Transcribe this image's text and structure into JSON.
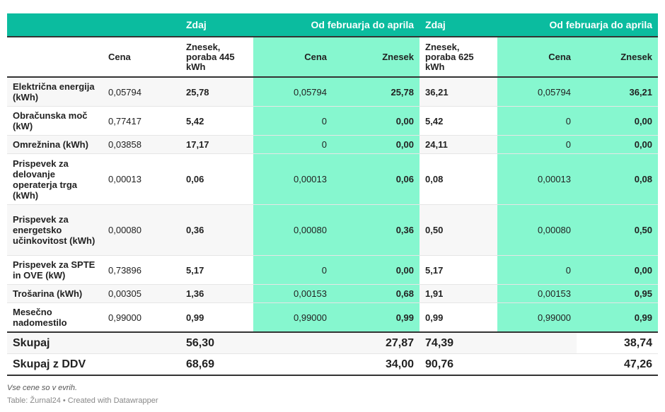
{
  "header": {
    "groups": [
      "",
      "",
      "Zdaj",
      "Od februarja do aprila",
      "Zdaj",
      "Od februarja do aprila"
    ],
    "columns": [
      "",
      "Cena",
      "Znesek, poraba 445 kWh",
      "Cena",
      "Znesek",
      "Znesek, poraba 625 kWh",
      "Cena",
      "Znesek"
    ]
  },
  "rows": [
    [
      "Električna energija (kWh)",
      "0,05794",
      "25,78",
      "0,05794",
      "25,78",
      "36,21",
      "0,05794",
      "36,21"
    ],
    [
      "Obračunska moč (kW)",
      "0,77417",
      "5,42",
      "0",
      "0,00",
      "5,42",
      "0",
      "0,00"
    ],
    [
      "Omrežnina (kWh)",
      "0,03858",
      "17,17",
      "0",
      "0,00",
      "24,11",
      "0",
      "0,00"
    ],
    [
      "Prispevek za delovanje operaterja trga (kWh)",
      "0,00013",
      "0,06",
      "0,00013",
      "0,06",
      "0,08",
      "0,00013",
      "0,08"
    ],
    [
      "Prispevek za energetsko učinkovitost (kWh)",
      "0,00080",
      "0,36",
      "0,00080",
      "0,36",
      "0,50",
      "0,00080",
      "0,50"
    ],
    [
      "Prispevek za SPTE in OVE (kW)",
      "0,73896",
      "5,17",
      "0",
      "0,00",
      "5,17",
      "0",
      "0,00"
    ],
    [
      "Trošarina (kWh)",
      "0,00305",
      "1,36",
      "0,00153",
      "0,68",
      "1,91",
      "0,00153",
      "0,95"
    ],
    [
      "Mesečno nadomestilo",
      "0,99000",
      "0,99",
      "0,99000",
      "0,99",
      "0,99",
      "0,99000",
      "0,99"
    ]
  ],
  "totals": [
    [
      "Skupaj",
      "",
      "56,30",
      "",
      "27,87",
      "74,39",
      "",
      "38,74"
    ],
    [
      "Skupaj z DDV",
      "",
      "68,69",
      "",
      "34,00",
      "90,76",
      "",
      "47,26"
    ]
  ],
  "footer": {
    "note": "Vse cene so v evrih.",
    "source": "Table: Žurnal24 • Created with Datawrapper"
  },
  "colors": {
    "header": "#0bbc9f",
    "highlight": "#86f7cf"
  }
}
